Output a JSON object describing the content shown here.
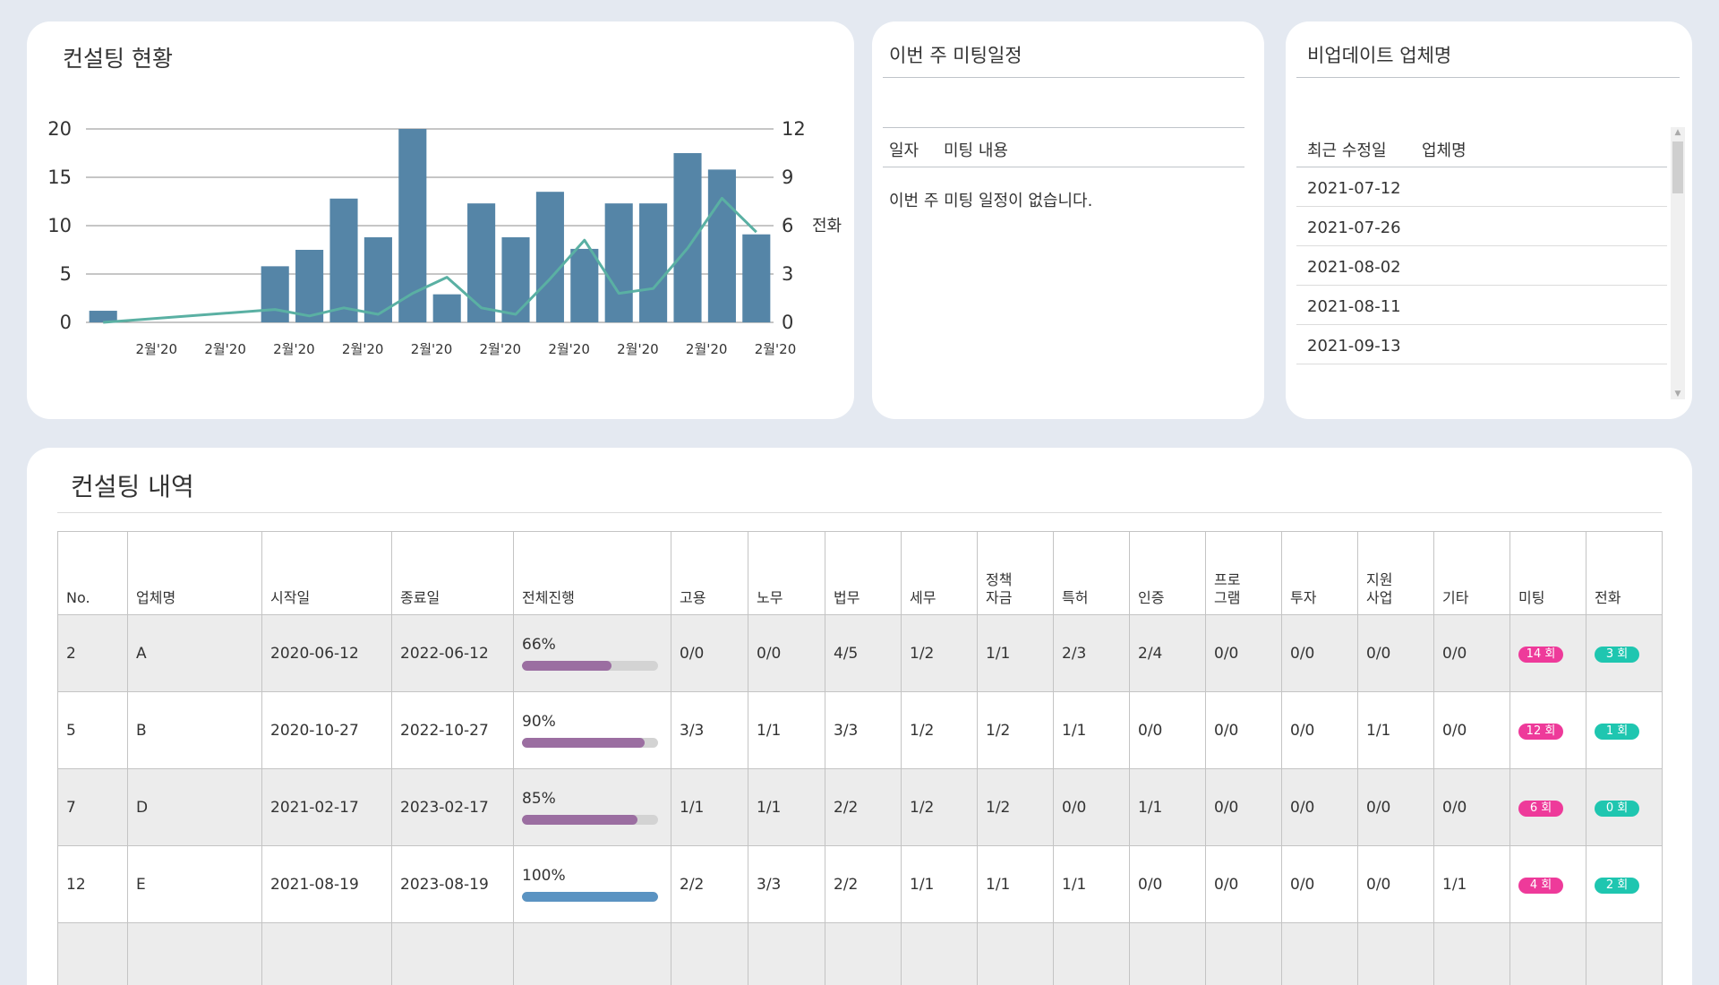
{
  "consulting_status": {
    "title": "컨설팅 현황",
    "chart_data": {
      "type": "bar",
      "categories": [
        "",
        "",
        "",
        "",
        "",
        "",
        "",
        "",
        "",
        "",
        "",
        "",
        "",
        "",
        "",
        "",
        "",
        "",
        "",
        ""
      ],
      "x_tick_labels": [
        "2월'20",
        "2월'20",
        "2월'20",
        "2월'20",
        "2월'20",
        "2월'20",
        "2월'20",
        "2월'20",
        "2월'20",
        "2월'20"
      ],
      "ylim": [
        0,
        20
      ],
      "yticks": [
        0,
        5,
        10,
        15,
        20
      ],
      "y2lim": [
        0,
        12
      ],
      "y2ticks": [
        0,
        3,
        6,
        9,
        12
      ],
      "y2label": "전화",
      "series": [
        {
          "type": "bar",
          "color": "#5585a7",
          "values": [
            1.2,
            0,
            0,
            0,
            0,
            5.8,
            7.5,
            12.8,
            8.8,
            20,
            2.9,
            12.3,
            8.8,
            13.5,
            7.6,
            12.3,
            12.3,
            17.5,
            15.8,
            9.1
          ]
        },
        {
          "type": "line",
          "axis": "right",
          "color": "#5ab0a3",
          "values": [
            0,
            null,
            null,
            null,
            null,
            0.8,
            0.4,
            0.9,
            0.5,
            1.8,
            2.8,
            0.9,
            0.5,
            2.7,
            5.1,
            1.8,
            2.1,
            4.6,
            7.7,
            5.6
          ]
        }
      ]
    }
  },
  "meeting": {
    "title": "이번 주 미팅일정",
    "col_date": "일자",
    "col_content": "미팅 내용",
    "empty": "이번 주 미팅 일정이 없습니다."
  },
  "update": {
    "title": "비업데이트 업체명",
    "col_date": "최근 수정일",
    "col_company": "업체명",
    "rows": [
      {
        "date": "2021-07-12",
        "company": ""
      },
      {
        "date": "2021-07-26",
        "company": ""
      },
      {
        "date": "2021-08-02",
        "company": ""
      },
      {
        "date": "2021-08-11",
        "company": ""
      },
      {
        "date": "2021-09-13",
        "company": ""
      }
    ]
  },
  "history": {
    "title": "컨설팅 내역",
    "headers": [
      "No.",
      "업체명",
      "시작일",
      "종료일",
      "전체진행",
      "고용",
      "노무",
      "법무",
      "세무",
      "정책|자금",
      "특허",
      "인증",
      "프로|그램",
      "투자",
      "지원|사업",
      "기타",
      "미팅",
      "전화"
    ],
    "rows": [
      {
        "no": "2",
        "company": "A",
        "start": "2020-06-12",
        "end": "2022-06-12",
        "progress": "66%",
        "progress_value": 0.66,
        "progress_color": "#9b6ea1",
        "cells": [
          "0/0",
          "0/0",
          "4/5",
          "1/2",
          "1/1",
          "2/3",
          "2/4",
          "0/0",
          "0/0",
          "0/0",
          "0/0"
        ],
        "meeting": "14 회",
        "call": "3 회"
      },
      {
        "no": "5",
        "company": "B",
        "start": "2020-10-27",
        "end": "2022-10-27",
        "progress": "90%",
        "progress_value": 0.9,
        "progress_color": "#9b6ea1",
        "cells": [
          "3/3",
          "1/1",
          "3/3",
          "1/2",
          "1/2",
          "1/1",
          "0/0",
          "0/0",
          "0/0",
          "1/1",
          "0/0"
        ],
        "meeting": "12 회",
        "call": "1 회"
      },
      {
        "no": "7",
        "company": "D",
        "start": "2021-02-17",
        "end": "2023-02-17",
        "progress": "85%",
        "progress_value": 0.85,
        "progress_color": "#9b6ea1",
        "cells": [
          "1/1",
          "1/1",
          "2/2",
          "1/2",
          "1/2",
          "0/0",
          "1/1",
          "0/0",
          "0/0",
          "0/0",
          "0/0"
        ],
        "meeting": "6 회",
        "call": "0 회"
      },
      {
        "no": "12",
        "company": "E",
        "start": "2021-08-19",
        "end": "2023-08-19",
        "progress": "100%",
        "progress_value": 1.0,
        "progress_color": "#5a93c2",
        "cells": [
          "2/2",
          "3/3",
          "2/2",
          "1/1",
          "1/1",
          "1/1",
          "0/0",
          "0/0",
          "0/0",
          "0/0",
          "1/1"
        ],
        "meeting": "4 회",
        "call": "2 회"
      }
    ]
  }
}
